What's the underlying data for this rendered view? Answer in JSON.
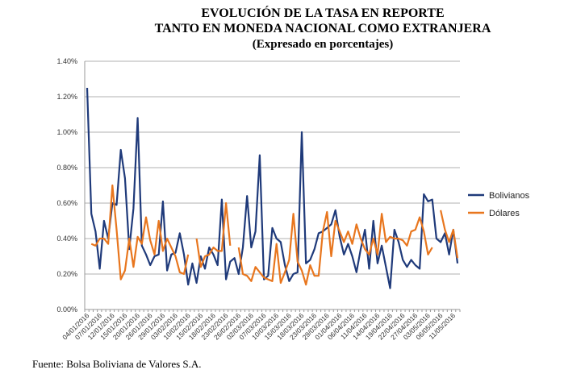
{
  "title_lines": [
    "EVOLUCIÓN DE LA TASA EN REPORTE",
    "TANTO EN MONEDA NACIONAL COMO EXTRANJERA",
    "(Expresado en porcentajes)"
  ],
  "source": "Fuente: Bolsa Boliviana de Valores S.A.",
  "chart_data": {
    "type": "line",
    "title": "EVOLUCIÓN DE LA TASA EN REPORTE TANTO EN MONEDA NACIONAL COMO EXTRANJERA (Expresado en porcentajes)",
    "xlabel": "",
    "ylabel": "",
    "ylim": [
      0,
      1.4
    ],
    "y_ticks": [
      "0.00%",
      "0.20%",
      "0.40%",
      "0.60%",
      "0.80%",
      "1.00%",
      "1.20%",
      "1.40%"
    ],
    "x_tick_labels": [
      "04/01/2016",
      "07/01/2016",
      "12/01/2016",
      "15/01/2016",
      "20/01/2016",
      "26/01/2016",
      "29/01/2016",
      "03/02/2016",
      "10/02/2016",
      "15/02/2016",
      "18/02/2016",
      "23/02/2016",
      "26/02/2016",
      "02/03/2016",
      "07/03/2016",
      "10/03/2016",
      "15/03/2016",
      "18/03/2016",
      "23/03/2016",
      "29/03/2016",
      "01/04/2016",
      "06/04/2016",
      "11/04/2016",
      "14/04/2016",
      "19/04/2016",
      "22/04/2016",
      "27/04/2016",
      "03/05/2016",
      "06/05/2016",
      "11/05/2016"
    ],
    "grid": true,
    "legend": "right",
    "colors": {
      "Bolivianos": "#1F3A7A",
      "Dólares": "#E8761E"
    },
    "series": [
      {
        "name": "Bolivianos",
        "values": [
          1.25,
          0.54,
          0.44,
          0.23,
          0.5,
          0.4,
          0.6,
          0.59,
          0.9,
          0.74,
          0.34,
          0.57,
          1.08,
          0.36,
          0.31,
          0.25,
          0.3,
          0.31,
          0.61,
          0.22,
          0.31,
          0.32,
          0.43,
          0.31,
          0.14,
          0.26,
          0.15,
          0.3,
          0.23,
          0.35,
          0.31,
          0.25,
          0.62,
          0.17,
          0.27,
          0.29,
          0.2,
          0.35,
          0.64,
          0.35,
          0.44,
          0.87,
          0.17,
          0.19,
          0.46,
          0.4,
          0.38,
          0.25,
          0.16,
          0.2,
          0.21,
          1.0,
          0.26,
          0.28,
          0.34,
          0.43,
          0.44,
          0.46,
          0.48,
          0.56,
          0.41,
          0.31,
          0.37,
          0.3,
          0.21,
          0.34,
          0.45,
          0.23,
          0.5,
          0.26,
          0.36,
          0.24,
          0.12,
          0.45,
          0.38,
          0.28,
          0.24,
          0.28,
          0.25,
          0.23,
          0.65,
          0.61,
          0.62,
          0.4,
          0.38,
          0.43,
          0.31,
          0.45,
          0.26
        ]
      },
      {
        "name": "Dólares",
        "values": [
          null,
          0.37,
          0.36,
          0.4,
          0.4,
          0.37,
          0.7,
          0.45,
          0.17,
          0.22,
          0.4,
          0.24,
          0.41,
          0.37,
          0.52,
          0.39,
          0.31,
          0.5,
          0.33,
          0.4,
          0.35,
          0.3,
          0.21,
          0.2,
          0.31,
          null,
          0.4,
          0.24,
          0.3,
          0.31,
          0.35,
          0.33,
          0.33,
          0.6,
          0.36,
          null,
          0.35,
          0.2,
          0.19,
          0.16,
          0.24,
          0.21,
          0.18,
          0.17,
          0.16,
          0.37,
          0.15,
          0.21,
          0.28,
          0.54,
          0.27,
          0.22,
          0.14,
          0.25,
          0.19,
          0.19,
          0.44,
          0.55,
          0.3,
          0.5,
          0.44,
          0.38,
          0.44,
          0.37,
          0.48,
          0.4,
          0.34,
          0.31,
          0.4,
          0.31,
          0.54,
          0.38,
          0.41,
          0.4,
          0.4,
          0.39,
          0.36,
          0.44,
          0.45,
          0.52,
          0.44,
          0.31,
          0.35,
          null,
          0.56,
          0.45,
          0.38,
          0.45,
          0.29
        ]
      }
    ]
  }
}
